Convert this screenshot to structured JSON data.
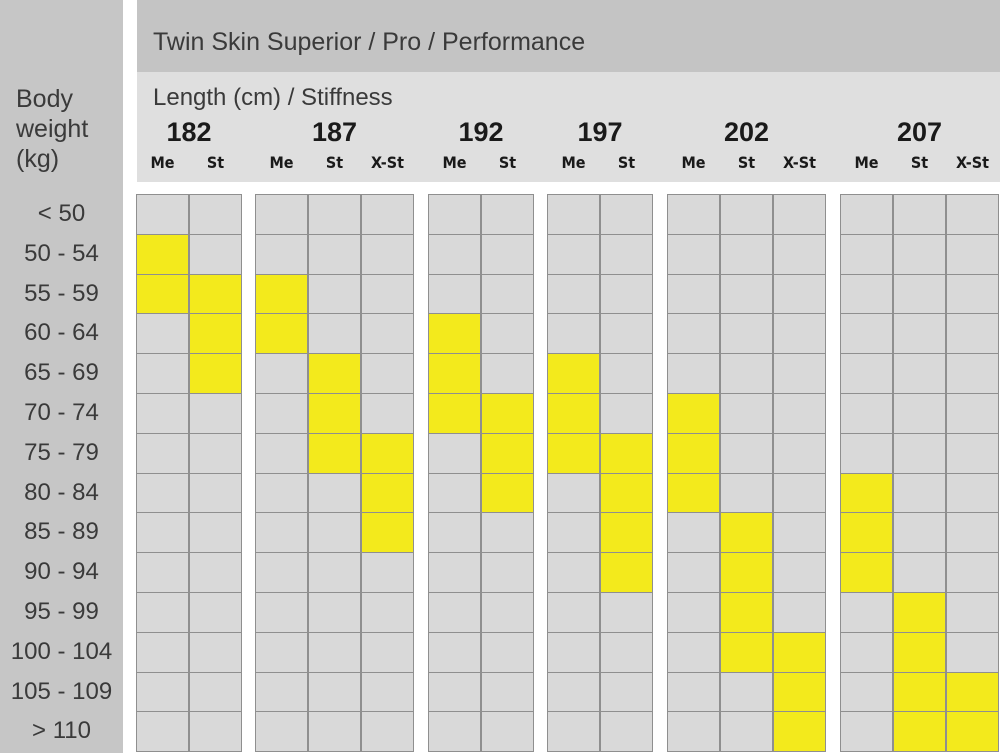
{
  "header": {
    "title": "Twin Skin Superior / Pro / Performance",
    "subtitle": "Length (cm) / Stiffness",
    "row_header": [
      "Body",
      "weight",
      "(kg)"
    ]
  },
  "colors": {
    "highlight": "#f3ea1c",
    "cell": "#d9d9d9",
    "grid": "#8f8f8f",
    "header_dark": "#c4c4c4",
    "header_light": "#dfdfdf"
  },
  "chart_data": {
    "type": "table",
    "title": "Twin Skin Superior / Pro / Performance",
    "xlabel": "Length (cm) / Stiffness",
    "ylabel": "Body weight (kg)",
    "rows": [
      "< 50",
      "50 - 54",
      "55 - 59",
      "60 - 64",
      "65 - 69",
      "70 - 74",
      "75 - 79",
      "80 - 84",
      "85 - 89",
      "90 - 94",
      "95 - 99",
      "100 - 104",
      "105 - 109",
      "> 110"
    ],
    "groups": [
      {
        "length": "182",
        "columns": [
          {
            "stiffness": "Me",
            "rows": [
              "50 - 54",
              "55 - 59"
            ]
          },
          {
            "stiffness": "St",
            "rows": [
              "55 - 59",
              "60 - 64",
              "65 - 69"
            ]
          }
        ]
      },
      {
        "length": "187",
        "columns": [
          {
            "stiffness": "Me",
            "rows": [
              "55 - 59",
              "60 - 64"
            ]
          },
          {
            "stiffness": "St",
            "rows": [
              "65 - 69",
              "70 - 74",
              "75 - 79"
            ]
          },
          {
            "stiffness": "X-St",
            "rows": [
              "75 - 79",
              "80 - 84",
              "85 - 89"
            ]
          }
        ]
      },
      {
        "length": "192",
        "columns": [
          {
            "stiffness": "Me",
            "rows": [
              "60 - 64",
              "65 - 69",
              "70 - 74"
            ]
          },
          {
            "stiffness": "St",
            "rows": [
              "70 - 74",
              "75 - 79",
              "80 - 84"
            ]
          }
        ]
      },
      {
        "length": "197",
        "columns": [
          {
            "stiffness": "Me",
            "rows": [
              "65 - 69",
              "70 - 74",
              "75 - 79"
            ]
          },
          {
            "stiffness": "St",
            "rows": [
              "75 - 79",
              "80 - 84",
              "85 - 89",
              "90 - 94"
            ]
          }
        ]
      },
      {
        "length": "202",
        "columns": [
          {
            "stiffness": "Me",
            "rows": [
              "70 - 74",
              "75 - 79",
              "80 - 84"
            ]
          },
          {
            "stiffness": "St",
            "rows": [
              "85 - 89",
              "90 - 94",
              "95 - 99",
              "100 - 104"
            ]
          },
          {
            "stiffness": "X-St",
            "rows": [
              "100 - 104",
              "105 - 109",
              "> 110"
            ]
          }
        ]
      },
      {
        "length": "207",
        "columns": [
          {
            "stiffness": "Me",
            "rows": [
              "80 - 84",
              "85 - 89",
              "90 - 94"
            ]
          },
          {
            "stiffness": "St",
            "rows": [
              "95 - 99",
              "100 - 104",
              "105 - 109",
              "> 110"
            ]
          },
          {
            "stiffness": "X-St",
            "rows": [
              "105 - 109",
              "> 110"
            ]
          }
        ]
      }
    ]
  }
}
